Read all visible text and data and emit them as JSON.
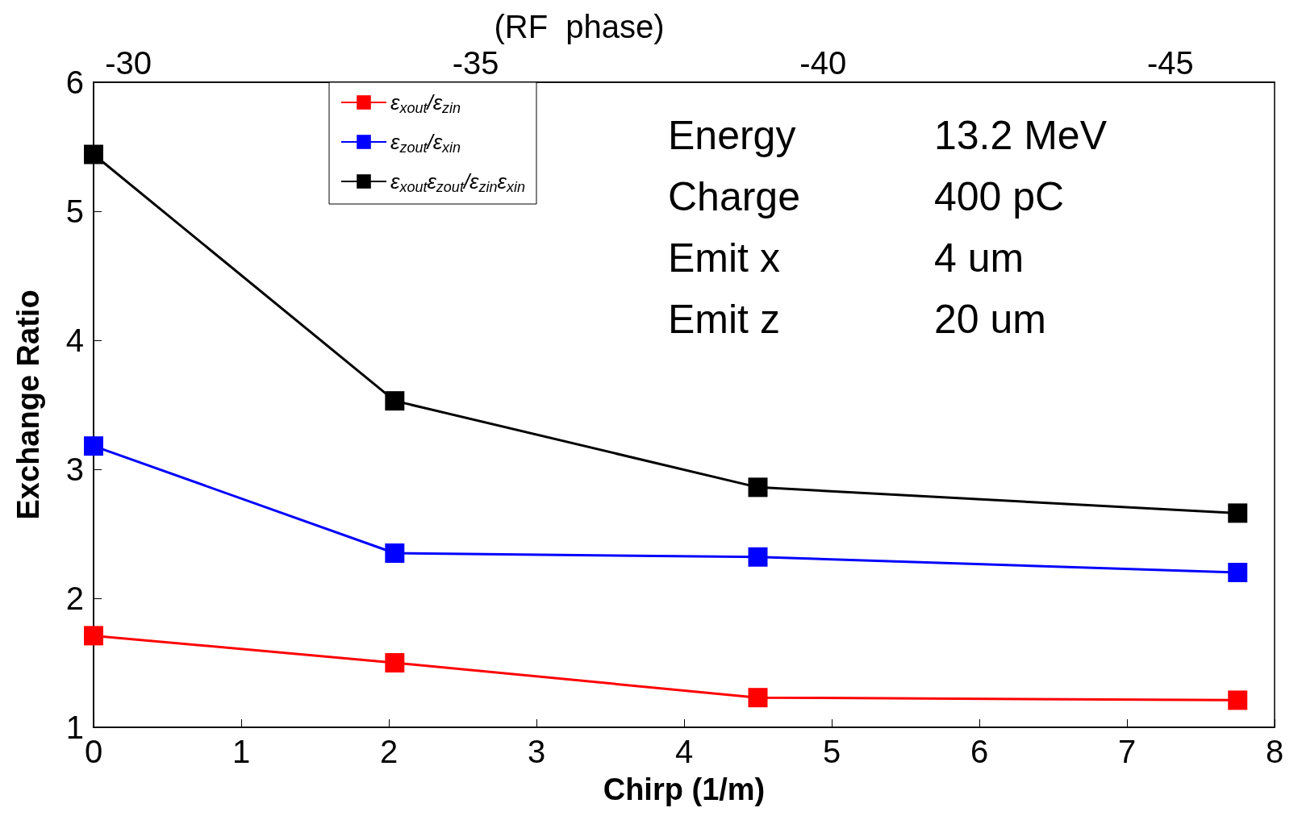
{
  "chart_data": {
    "type": "line",
    "xlabel": "Chirp (1/m)",
    "ylabel": "Exchange Ratio",
    "x2label": "(RF  phase)",
    "x": [
      0,
      2.04,
      4.5,
      7.75
    ],
    "series": [
      {
        "name": "ε$_{xout}$/ε$_{zin}$",
        "color": "#ff0000",
        "values": [
          1.71,
          1.5,
          1.23,
          1.21
        ]
      },
      {
        "name": "ε$_{zout}$/ε$_{xin}$",
        "color": "#0000ff",
        "values": [
          3.18,
          2.35,
          2.32,
          2.2
        ]
      },
      {
        "name": "ε$_{xout}$ε$_{zout}$/ε$_{zin}$ε$_{xin}$",
        "color": "#000000",
        "values": [
          5.44,
          3.53,
          2.86,
          2.66
        ]
      }
    ],
    "xlim": [
      0,
      8
    ],
    "xticks": [
      0,
      1,
      2,
      3,
      4,
      5,
      6,
      7,
      8
    ],
    "x2lim": [
      -29.5,
      -46.5
    ],
    "x2ticks": [
      -30,
      -35,
      -40,
      -45
    ],
    "ylim": [
      1,
      6
    ],
    "yticks": [
      1,
      2,
      3,
      4,
      5,
      6
    ],
    "annotations": [
      "Energy 13.2 MeV",
      "Charge 400 pC",
      "Emit x 4 um",
      "Emit z 20 um"
    ],
    "legend": "top left",
    "marker": "square",
    "line_style": "solid",
    "grid": false
  }
}
